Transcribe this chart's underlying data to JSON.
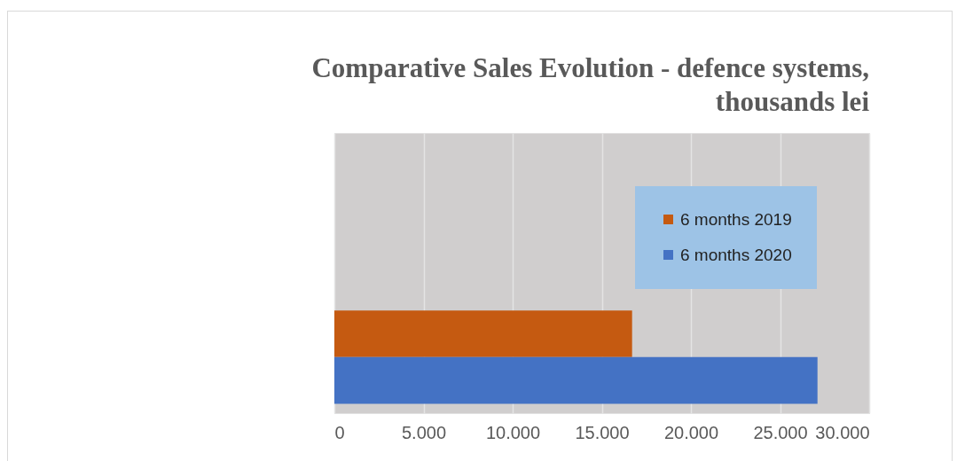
{
  "chart_data": {
    "type": "bar",
    "orientation": "horizontal",
    "title": "Comparative Sales Evolution - defence systems, thousands lei",
    "categories": [
      null
    ],
    "series": [
      {
        "name": "6 months 2019",
        "color": "#c55a11",
        "values": [
          16700
        ]
      },
      {
        "name": "6 months 2020",
        "color": "#4472c4",
        "values": [
          27100
        ]
      }
    ],
    "xlim": [
      0,
      30000
    ],
    "xticks": [
      0,
      {
        "value": 5000,
        "label": "5.000"
      },
      {
        "value": 10000,
        "label": "10.000"
      },
      {
        "value": 15000,
        "label": "15.000"
      },
      {
        "value": 20000,
        "label": "20.000"
      },
      {
        "value": 25000,
        "label": "25.000"
      },
      {
        "value": 30000,
        "label": "30.000"
      }
    ],
    "grid": "x",
    "legend": "top right",
    "tick_labels": "x"
  }
}
